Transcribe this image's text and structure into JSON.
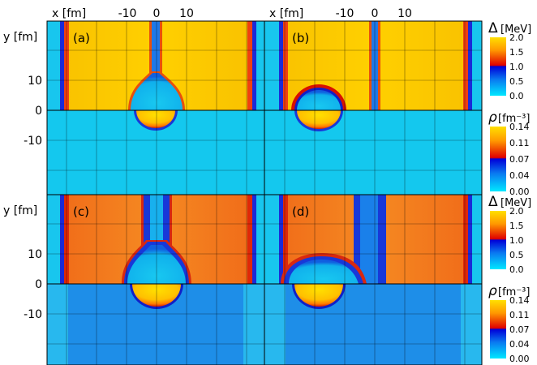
{
  "figure": {
    "x_axis_label": "x [fm]",
    "y_axis_label": "y [fm]",
    "x_ticks": [
      "-10",
      "0",
      "10"
    ],
    "y_ticks": [
      "10",
      "0",
      "-10"
    ],
    "panel_labels": [
      "(a)",
      "(b)",
      "(c)",
      "(d)"
    ]
  },
  "colorbars": [
    {
      "symbol": "Δ",
      "unit": "[MeV]",
      "ticks": [
        "2.0",
        "1.5",
        "1.0",
        "0.5",
        "0.0"
      ]
    },
    {
      "symbol": "ρ",
      "unit": "[fm⁻³]",
      "ticks": [
        "0.14",
        "0.11",
        "0.07",
        "0.04",
        "0.00"
      ]
    },
    {
      "symbol": "Δ",
      "unit": "[MeV]",
      "ticks": [
        "2.0",
        "1.5",
        "1.0",
        "0.5",
        "0.0"
      ]
    },
    {
      "symbol": "ρ",
      "unit": "[fm⁻³]",
      "ticks": [
        "0.14",
        "0.11",
        "0.07",
        "0.04",
        "0.00"
      ]
    }
  ],
  "colors": {
    "gap_high": "#f7bd00",
    "gap_mid": "#f25a1a",
    "gap_low": "#00c8f0",
    "density_bg_ab": "#14c8ee",
    "density_bg_cd": "#1e8ee8",
    "nucleus_core": "#ffcf00",
    "nucleus_rim": "#e8260c",
    "shell": "#1020c8"
  },
  "chart_data": {
    "type": "heatmap",
    "x_ticks": [
      -10,
      0,
      10
    ],
    "y_ticks": [
      10,
      0,
      -10
    ],
    "panels": [
      {
        "label": "(a)",
        "upper_field": "Δ",
        "lower_field": "ρ"
      },
      {
        "label": "(b)",
        "upper_field": "Δ",
        "lower_field": "ρ"
      },
      {
        "label": "(c)",
        "upper_field": "Δ",
        "lower_field": "ρ"
      },
      {
        "label": "(d)",
        "upper_field": "Δ",
        "lower_field": "ρ"
      }
    ],
    "colorbar_gap": {
      "unit": "MeV",
      "range": [
        0.0,
        2.0
      ],
      "ticks": [
        0.0,
        0.5,
        1.0,
        1.5,
        2.0
      ]
    },
    "colorbar_density": {
      "unit": "fm^-3",
      "range": [
        0.0,
        0.14
      ],
      "ticks": [
        0.0,
        0.04,
        0.07,
        0.11,
        0.14
      ]
    }
  }
}
